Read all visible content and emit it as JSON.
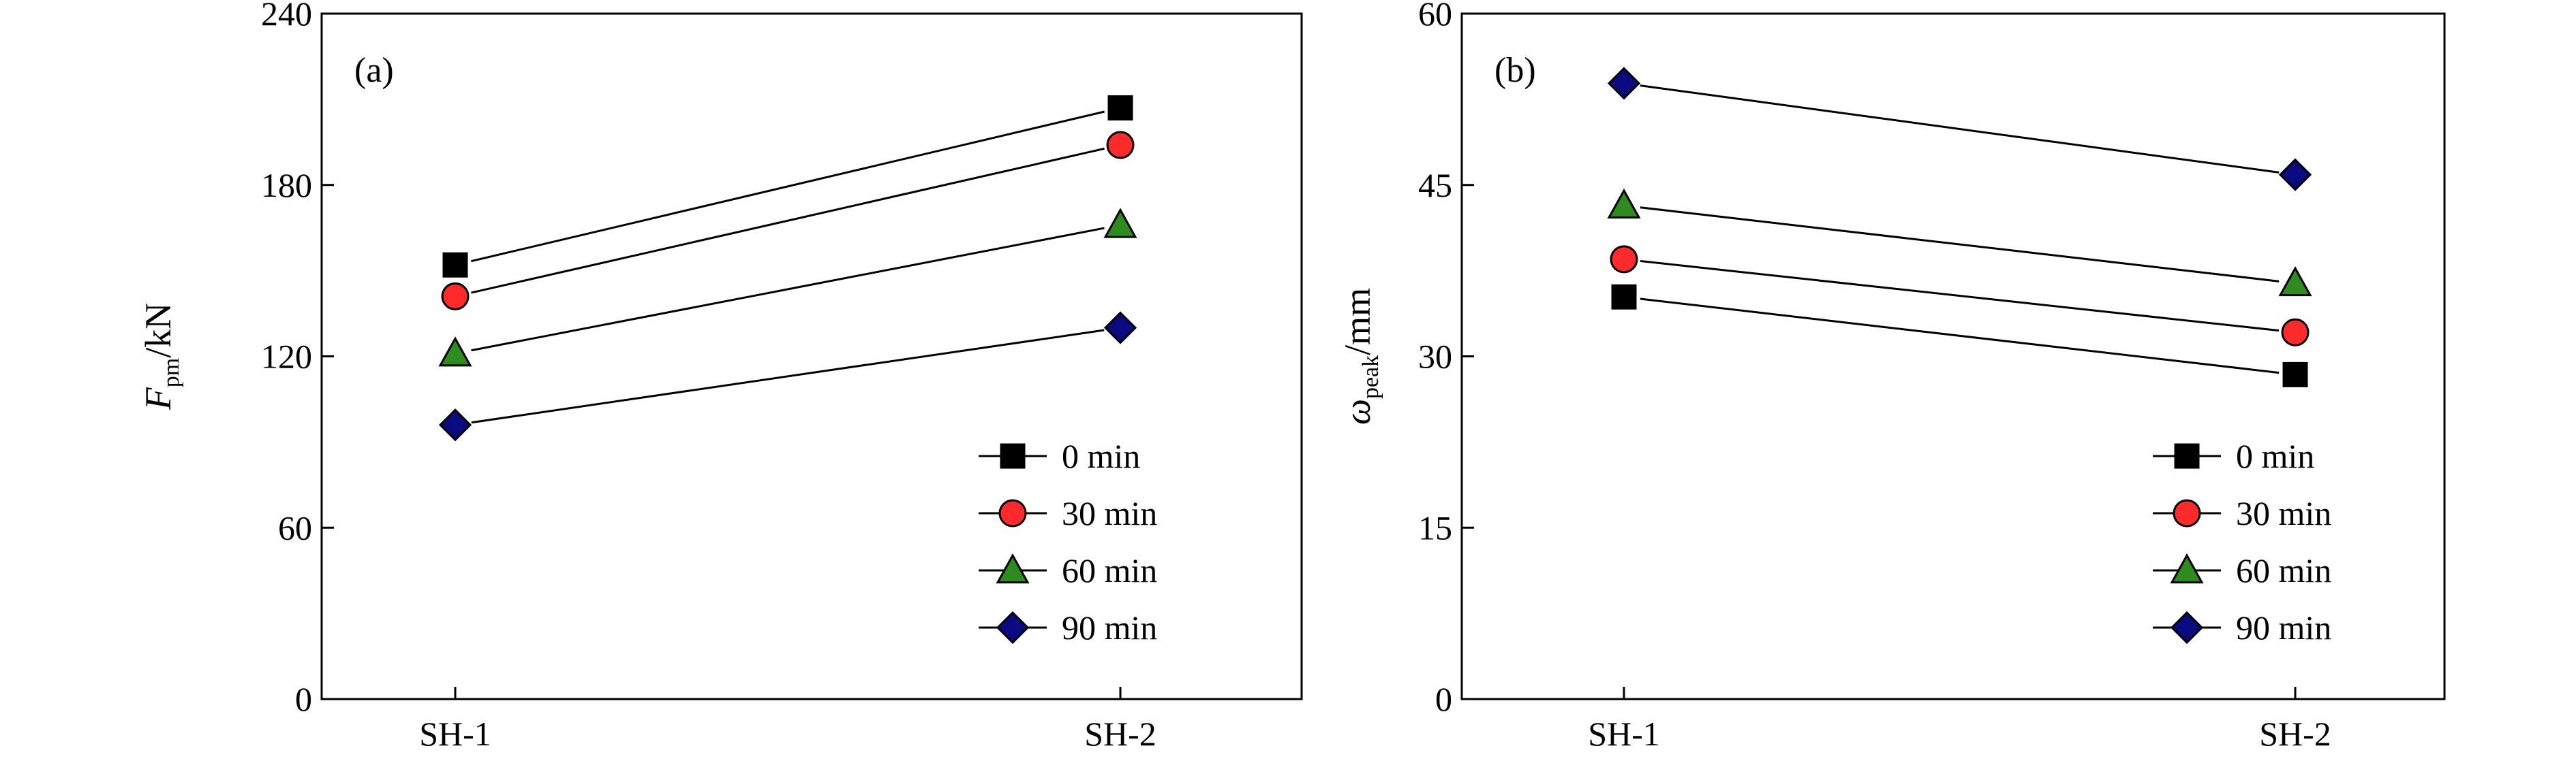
{
  "chart_data": [
    {
      "type": "line",
      "panel_label": "(a)",
      "categories": [
        "SH-1",
        "SH-2"
      ],
      "ylabel": {
        "main": "F",
        "sub": "pm",
        "unit": "/kN"
      },
      "ylim": [
        0,
        240
      ],
      "yticks": [
        "0",
        "60",
        "120",
        "180",
        "240"
      ],
      "grid": false,
      "legend_position": "bottom-right",
      "series": [
        {
          "name": "0 min",
          "marker": "square",
          "color": "#000000",
          "values": [
            152,
            207
          ]
        },
        {
          "name": "30 min",
          "marker": "circle",
          "color": "#ff2a2a",
          "values": [
            141,
            194
          ]
        },
        {
          "name": "60 min",
          "marker": "triangle",
          "color": "#2e8b1e",
          "values": [
            121,
            166
          ]
        },
        {
          "name": "90 min",
          "marker": "diamond",
          "color": "#0a0a80",
          "values": [
            96,
            130
          ]
        }
      ]
    },
    {
      "type": "line",
      "panel_label": "(b)",
      "categories": [
        "SH-1",
        "SH-2"
      ],
      "ylabel": {
        "main": "ω",
        "sub": "peak",
        "unit": "/mm"
      },
      "ylim": [
        0,
        60
      ],
      "yticks": [
        "0",
        "15",
        "30",
        "45",
        "60"
      ],
      "grid": false,
      "legend_position": "bottom-right",
      "series": [
        {
          "name": "0 min",
          "marker": "square",
          "color": "#000000",
          "values": [
            35.2,
            28.4
          ]
        },
        {
          "name": "30 min",
          "marker": "circle",
          "color": "#ff2a2a",
          "values": [
            38.5,
            32.1
          ]
        },
        {
          "name": "60 min",
          "marker": "triangle",
          "color": "#2e8b1e",
          "values": [
            43.2,
            36.4
          ]
        },
        {
          "name": "90 min",
          "marker": "diamond",
          "color": "#0a0a80",
          "values": [
            53.9,
            45.9
          ]
        }
      ]
    }
  ]
}
